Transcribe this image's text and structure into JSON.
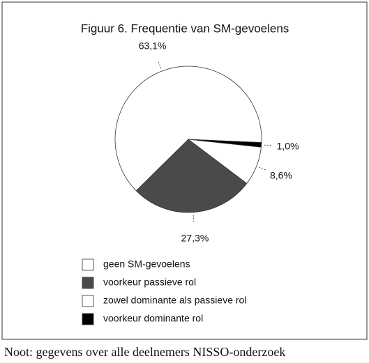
{
  "chart_data": {
    "type": "pie",
    "title": "Figuur 6. Frequentie van SM-gevoelens",
    "categories": [
      "geen SM-gevoelens",
      "voorkeur passieve rol",
      "zowel dominante als passieve rol",
      "voorkeur dominante rol"
    ],
    "values": [
      63.1,
      27.3,
      8.6,
      1.0
    ],
    "value_labels": [
      "63,1%",
      "27,3%",
      "8,6%",
      "1,0%"
    ],
    "colors": [
      "#ffffff",
      "#4a4a4a",
      "#ffffff",
      "#000000"
    ]
  },
  "note": "Noot: gegevens over alle deelnemers NISSO-onderzoek"
}
